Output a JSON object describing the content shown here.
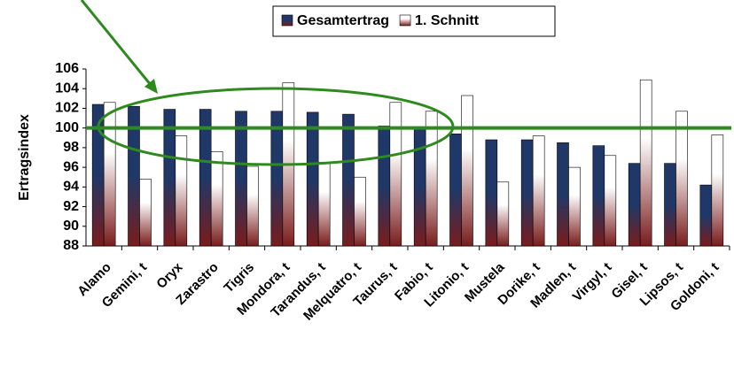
{
  "chart_data": {
    "type": "bar",
    "y_label": "Ertragsindex",
    "categories": [
      "Alamo",
      "Gemini, t",
      "Oryx",
      "Zarastro",
      "Tigris",
      "Mondora, t",
      "Tarandus, t",
      "Melquatro, t",
      "Taurus, t",
      "Fabio, t",
      "Litonio, t",
      "Mustela",
      "Dorike, t",
      "Madlen, t",
      "Virgyl, t",
      "Gisel, t",
      "Lipsos, t",
      "Goldoni, t"
    ],
    "series": [
      {
        "name": "Gesamtertrag",
        "color": "#1f3868",
        "values": [
          102.4,
          102.2,
          101.9,
          101.9,
          101.7,
          101.7,
          101.6,
          101.4,
          100.2,
          100.0,
          99.4,
          98.8,
          98.8,
          98.5,
          98.2,
          96.4,
          96.4,
          94.2
        ]
      },
      {
        "name": "1. Schnitt",
        "color": "#ffffff",
        "values": [
          102.6,
          94.8,
          99.2,
          97.6,
          96.1,
          104.6,
          96.5,
          95.0,
          102.6,
          101.7,
          103.3,
          94.5,
          99.2,
          96.0,
          97.2,
          104.9,
          101.7,
          99.3
        ]
      }
    ],
    "gradient_color": "#7a1c1c",
    "ylim": [
      88,
      106
    ],
    "yticks": [
      88,
      90,
      92,
      94,
      96,
      98,
      100,
      102,
      104,
      106
    ],
    "reference_line": 100,
    "reference_color": "#2e8a1e",
    "grid": false,
    "legend": "top"
  }
}
